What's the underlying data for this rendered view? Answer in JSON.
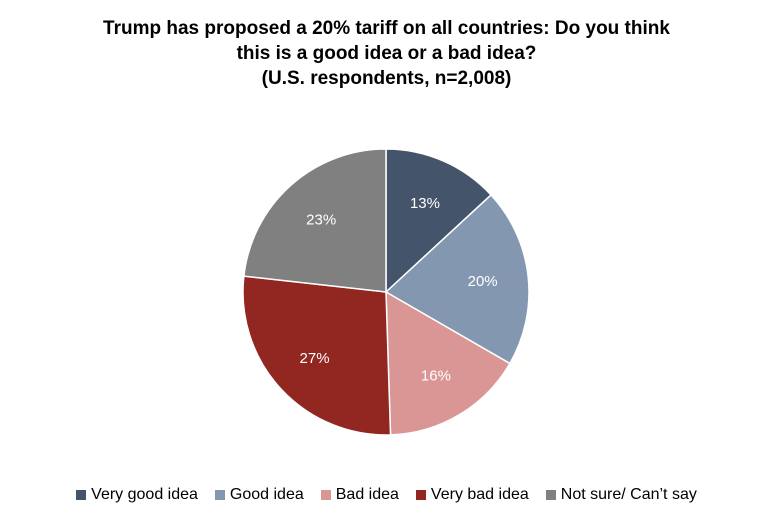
{
  "chart_data": {
    "type": "pie",
    "title": [
      "Trump has proposed a 20% tariff on all countries: Do you think",
      "this is a good idea or a bad idea?",
      "(U.S. respondents, n=2,008)"
    ],
    "slices": [
      {
        "label": "Very good idea",
        "value": 13,
        "display": "13%",
        "color": "#44546A"
      },
      {
        "label": "Good idea",
        "value": 20,
        "display": "20%",
        "color": "#8497B0"
      },
      {
        "label": "Bad idea",
        "value": 16,
        "display": "16%",
        "color": "#DA9694"
      },
      {
        "label": "Very bad idea",
        "value": 27,
        "display": "27%",
        "color": "#922620"
      },
      {
        "label": "Not sure/ Can’t say",
        "value": 23,
        "display": "23%",
        "color": "#808080"
      }
    ],
    "legend_position": "bottom",
    "start_angle": "12 o'clock, clockwise"
  }
}
